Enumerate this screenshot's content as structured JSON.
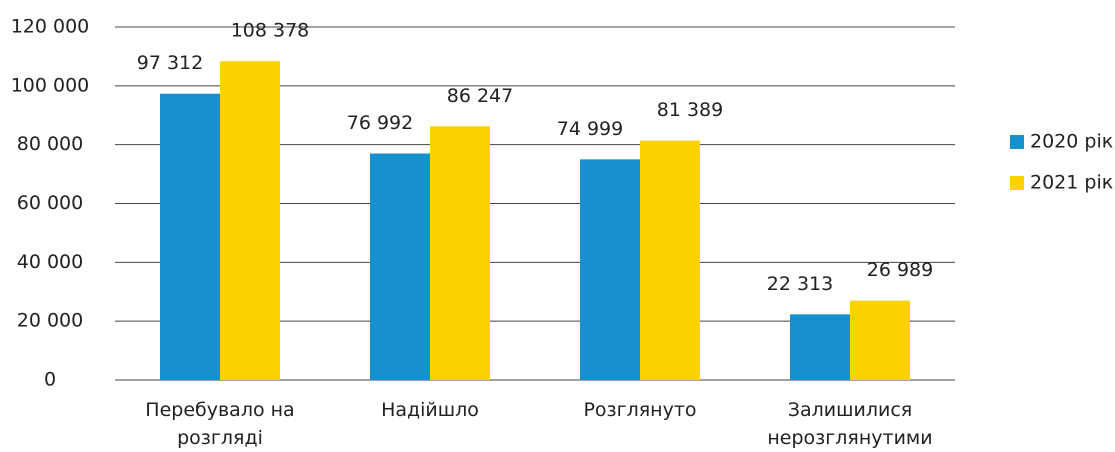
{
  "chart_data": {
    "type": "bar",
    "categories": [
      "Перебувало на розгляді",
      "Надійшло",
      "Розглянуто",
      "Залишилися нерозглянутими"
    ],
    "series": [
      {
        "name": "2020 рік",
        "color": "#1790d0",
        "values": [
          97312,
          76992,
          74999,
          22313
        ],
        "value_labels": [
          "97 312",
          "76 992",
          "74 999",
          "22 313"
        ]
      },
      {
        "name": "2021 рік",
        "color": "#fcd200",
        "values": [
          108378,
          86247,
          81389,
          26989
        ],
        "value_labels": [
          "108 378",
          "86 247",
          "81 389",
          "26 989"
        ]
      }
    ],
    "ylim": [
      0,
      120000
    ],
    "yticks": [
      0,
      {
        "value": 20000,
        "label": "20 000"
      },
      {
        "value": 40000,
        "label": "40 000"
      },
      {
        "value": 60000,
        "label": "60 000"
      },
      {
        "value": 80000,
        "label": "80 000"
      },
      {
        "value": 100000,
        "label": "100 000"
      },
      {
        "value": 120000,
        "label": "120 000"
      }
    ],
    "grid": true,
    "legend": "right"
  }
}
